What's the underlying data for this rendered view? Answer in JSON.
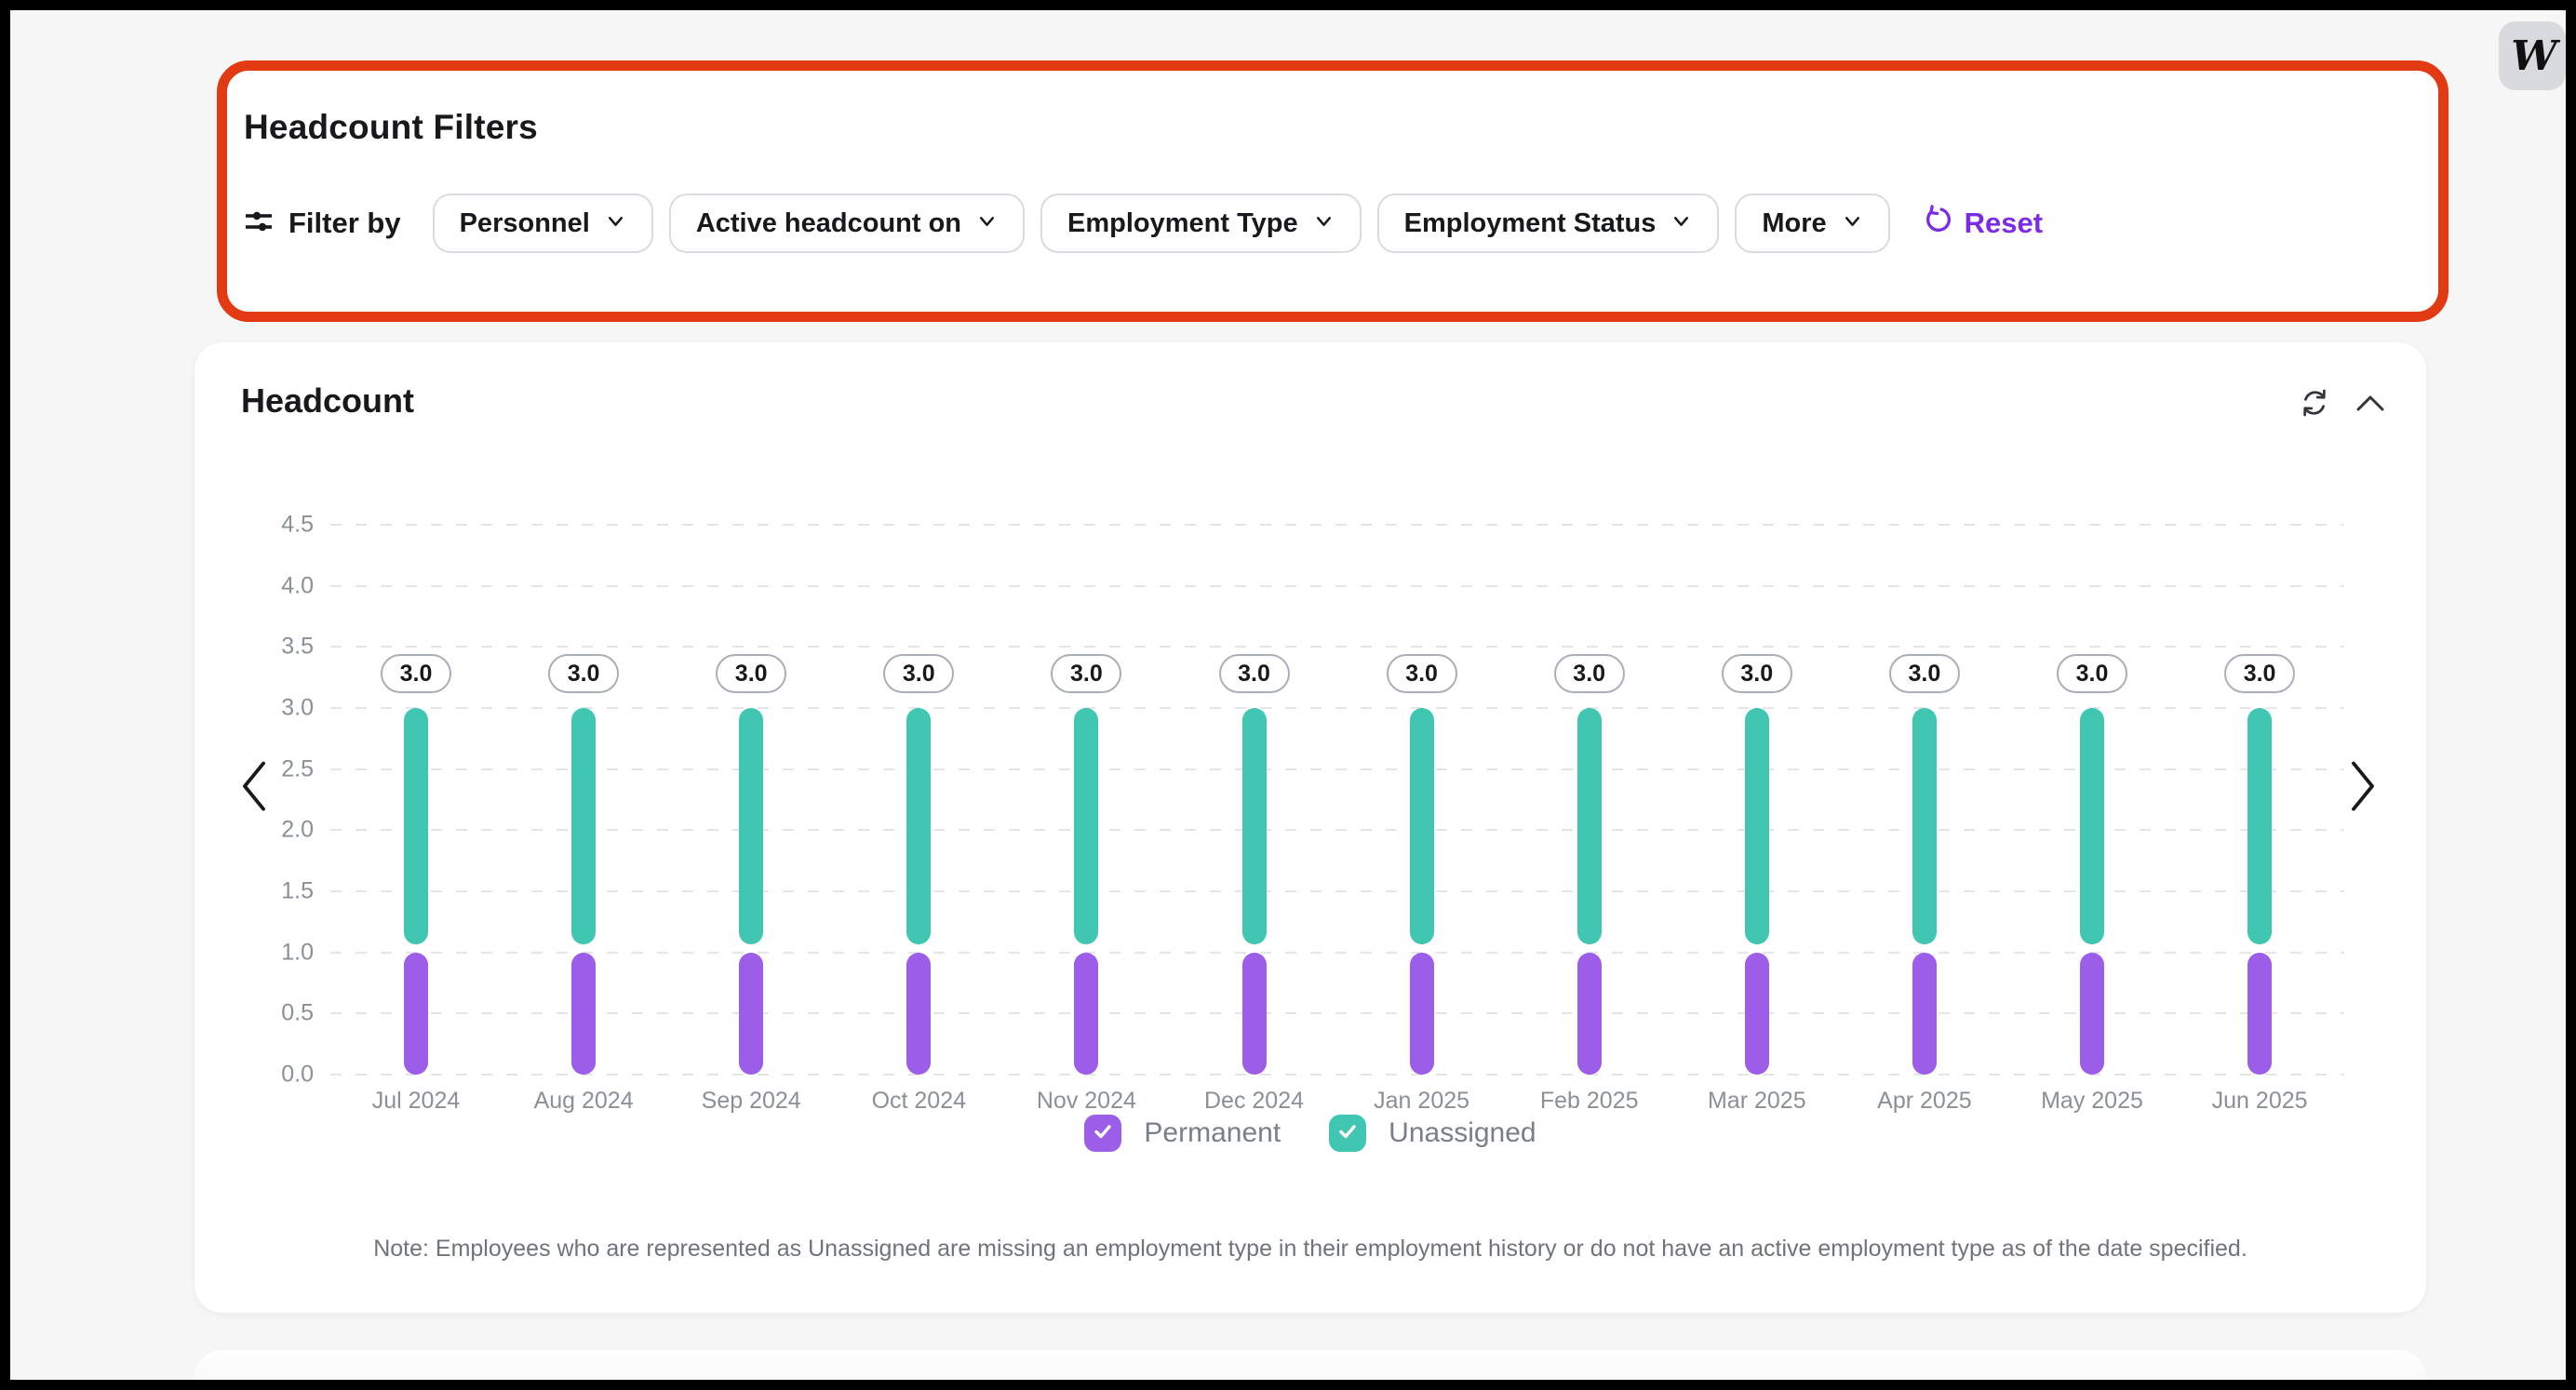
{
  "theme": {
    "highlight_border": "#e23a13",
    "reset_color": "#7c2be8",
    "permanent_color": "#9c5de8",
    "unassigned_color": "#41c6b2"
  },
  "badge": {
    "label": "W"
  },
  "filters_card": {
    "title": "Headcount Filters",
    "filter_by_label": "Filter by",
    "buttons": [
      {
        "label": "Personnel"
      },
      {
        "label": "Active headcount on"
      },
      {
        "label": "Employment Type"
      },
      {
        "label": "Employment Status"
      },
      {
        "label": "More"
      }
    ],
    "reset_label": "Reset"
  },
  "chart_card": {
    "title": "Headcount",
    "legend": [
      {
        "label": "Permanent",
        "color": "#9c5de8",
        "checked": true
      },
      {
        "label": "Unassigned",
        "color": "#41c6b2",
        "checked": true
      }
    ],
    "note": "Note: Employees who are represented as Unassigned are missing an employment type in their employment history or do not have an active employment type as of the date specified."
  },
  "chart_data": {
    "type": "bar",
    "stacked": true,
    "title": "Headcount",
    "categories": [
      "Jul 2024",
      "Aug 2024",
      "Sep 2024",
      "Oct 2024",
      "Nov 2024",
      "Dec 2024",
      "Jan 2025",
      "Feb 2025",
      "Mar 2025",
      "Apr 2025",
      "May 2025",
      "Jun 2025"
    ],
    "series": [
      {
        "name": "Permanent",
        "color": "#9c5de8",
        "values": [
          1,
          1,
          1,
          1,
          1,
          1,
          1,
          1,
          1,
          1,
          1,
          1
        ]
      },
      {
        "name": "Unassigned",
        "color": "#41c6b2",
        "values": [
          2,
          2,
          2,
          2,
          2,
          2,
          2,
          2,
          2,
          2,
          2,
          2
        ]
      }
    ],
    "bar_labels": [
      "3.0",
      "3.0",
      "3.0",
      "3.0",
      "3.0",
      "3.0",
      "3.0",
      "3.0",
      "3.0",
      "3.0",
      "3.0",
      "3.0"
    ],
    "ytick_labels": [
      "0.0",
      "0.5",
      "1.0",
      "1.5",
      "2.0",
      "2.5",
      "3.0",
      "3.5",
      "4.0",
      "4.5"
    ],
    "ylim": [
      0,
      4.5
    ],
    "grid": "horizontal-dashed",
    "legend_position": "bottom"
  }
}
